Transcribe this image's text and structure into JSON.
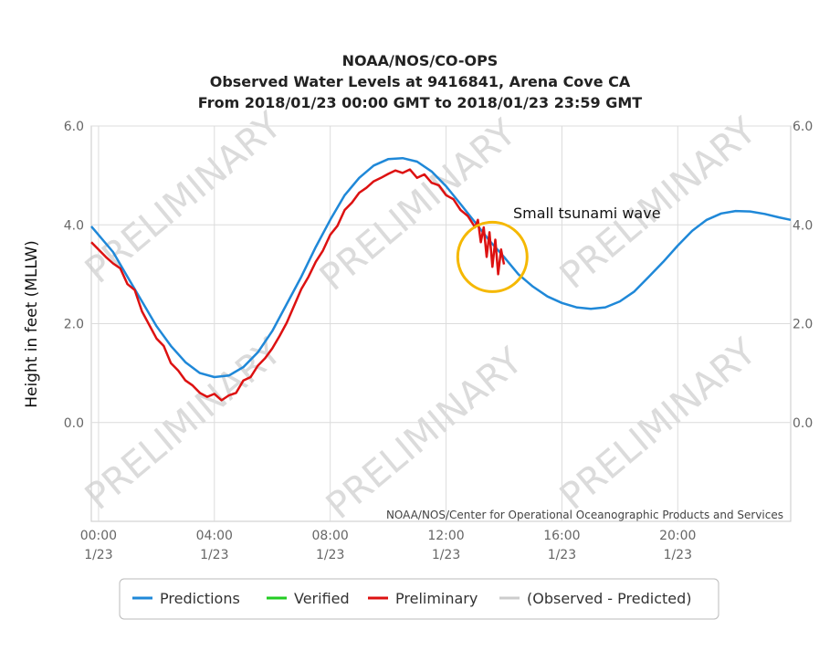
{
  "chart_data": {
    "type": "line",
    "title": [
      "NOAA/NOS/CO-OPS",
      "Observed Water Levels at 9416841, Arena Cove CA",
      "From 2018/01/23 00:00 GMT to 2018/01/23 23:59 GMT"
    ],
    "ylabel": "Height in feet (MLLW)",
    "ylim": [
      -2.0,
      6.0
    ],
    "xlim": [
      -0.25,
      23.9
    ],
    "y_ticks": [
      {
        "value": 6.0,
        "label": "6.0"
      },
      {
        "value": 4.0,
        "label": "4.0"
      },
      {
        "value": 2.0,
        "label": "2.0"
      },
      {
        "value": 0.0,
        "label": "0.0"
      }
    ],
    "x_ticks": [
      {
        "value": 0,
        "time": "00:00",
        "date": "1/23"
      },
      {
        "value": 4,
        "time": "04:00",
        "date": "1/23"
      },
      {
        "value": 8,
        "time": "08:00",
        "date": "1/23"
      },
      {
        "value": 12,
        "time": "12:00",
        "date": "1/23"
      },
      {
        "value": 16,
        "time": "16:00",
        "date": "1/23"
      },
      {
        "value": 20,
        "time": "20:00",
        "date": "1/23"
      }
    ],
    "grid": true,
    "credit": "NOAA/NOS/Center for Operational Oceanographic Products and Services",
    "watermark": "PRELIMINARY",
    "annotation": {
      "text": "Small tsunami wave",
      "x": 13.6,
      "y": 3.35,
      "color": "#f5b800"
    },
    "legend": {
      "position": "bottom",
      "items": [
        {
          "name": "Predictions",
          "color": "#1f88d8",
          "muted": false
        },
        {
          "name": "Verified",
          "color": "#22cc22",
          "muted": false
        },
        {
          "name": "Preliminary",
          "color": "#dd1111",
          "muted": false
        },
        {
          "name": "(Observed - Predicted)",
          "color": "#cccccc",
          "muted": true
        }
      ]
    },
    "series": [
      {
        "name": "Predictions",
        "color": "#1f88d8",
        "points": [
          [
            -0.25,
            3.97
          ],
          [
            0.5,
            3.45
          ],
          [
            1.0,
            2.95
          ],
          [
            1.5,
            2.45
          ],
          [
            2.0,
            1.95
          ],
          [
            2.5,
            1.55
          ],
          [
            3.0,
            1.22
          ],
          [
            3.5,
            1.0
          ],
          [
            4.0,
            0.92
          ],
          [
            4.5,
            0.95
          ],
          [
            5.0,
            1.12
          ],
          [
            5.5,
            1.42
          ],
          [
            6.0,
            1.85
          ],
          [
            6.5,
            2.4
          ],
          [
            7.0,
            2.95
          ],
          [
            7.5,
            3.55
          ],
          [
            8.0,
            4.1
          ],
          [
            8.5,
            4.6
          ],
          [
            9.0,
            4.95
          ],
          [
            9.5,
            5.2
          ],
          [
            10.0,
            5.33
          ],
          [
            10.5,
            5.35
          ],
          [
            11.0,
            5.28
          ],
          [
            11.5,
            5.08
          ],
          [
            12.0,
            4.78
          ],
          [
            12.5,
            4.42
          ],
          [
            13.0,
            4.05
          ],
          [
            13.5,
            3.68
          ],
          [
            14.0,
            3.35
          ],
          [
            14.5,
            3.0
          ],
          [
            15.0,
            2.75
          ],
          [
            15.5,
            2.55
          ],
          [
            16.0,
            2.42
          ],
          [
            16.5,
            2.33
          ],
          [
            17.0,
            2.3
          ],
          [
            17.5,
            2.33
          ],
          [
            18.0,
            2.45
          ],
          [
            18.5,
            2.65
          ],
          [
            19.0,
            2.95
          ],
          [
            19.5,
            3.25
          ],
          [
            20.0,
            3.58
          ],
          [
            20.5,
            3.88
          ],
          [
            21.0,
            4.1
          ],
          [
            21.5,
            4.23
          ],
          [
            22.0,
            4.28
          ],
          [
            22.5,
            4.27
          ],
          [
            23.0,
            4.22
          ],
          [
            23.5,
            4.15
          ],
          [
            23.9,
            4.1
          ]
        ]
      },
      {
        "name": "Preliminary",
        "color": "#dd1111",
        "points": [
          [
            -0.25,
            3.65
          ],
          [
            0.25,
            3.35
          ],
          [
            0.5,
            3.22
          ],
          [
            0.75,
            3.12
          ],
          [
            1.0,
            2.8
          ],
          [
            1.25,
            2.68
          ],
          [
            1.5,
            2.25
          ],
          [
            2.0,
            1.7
          ],
          [
            2.25,
            1.55
          ],
          [
            2.5,
            1.2
          ],
          [
            2.75,
            1.05
          ],
          [
            3.0,
            0.85
          ],
          [
            3.25,
            0.75
          ],
          [
            3.5,
            0.6
          ],
          [
            3.75,
            0.52
          ],
          [
            4.0,
            0.58
          ],
          [
            4.25,
            0.45
          ],
          [
            4.5,
            0.55
          ],
          [
            4.75,
            0.6
          ],
          [
            5.0,
            0.85
          ],
          [
            5.25,
            0.92
          ],
          [
            5.5,
            1.15
          ],
          [
            5.75,
            1.3
          ],
          [
            6.0,
            1.5
          ],
          [
            6.25,
            1.75
          ],
          [
            6.5,
            2.02
          ],
          [
            7.0,
            2.7
          ],
          [
            7.25,
            2.95
          ],
          [
            7.5,
            3.25
          ],
          [
            7.75,
            3.48
          ],
          [
            8.0,
            3.8
          ],
          [
            8.25,
            3.98
          ],
          [
            8.5,
            4.3
          ],
          [
            8.75,
            4.45
          ],
          [
            9.0,
            4.65
          ],
          [
            9.25,
            4.75
          ],
          [
            9.5,
            4.88
          ],
          [
            9.75,
            4.95
          ],
          [
            10.0,
            5.03
          ],
          [
            10.25,
            5.1
          ],
          [
            10.5,
            5.05
          ],
          [
            10.75,
            5.12
          ],
          [
            11.0,
            4.95
          ],
          [
            11.25,
            5.02
          ],
          [
            11.5,
            4.85
          ],
          [
            11.75,
            4.8
          ],
          [
            12.0,
            4.6
          ],
          [
            12.25,
            4.52
          ],
          [
            12.5,
            4.3
          ],
          [
            12.75,
            4.18
          ],
          [
            13.0,
            3.95
          ],
          [
            13.1,
            4.1
          ],
          [
            13.2,
            3.65
          ],
          [
            13.3,
            3.95
          ],
          [
            13.4,
            3.35
          ],
          [
            13.5,
            3.85
          ],
          [
            13.6,
            3.15
          ],
          [
            13.7,
            3.7
          ],
          [
            13.8,
            3.0
          ],
          [
            13.9,
            3.5
          ],
          [
            14.0,
            3.2
          ]
        ]
      }
    ]
  }
}
